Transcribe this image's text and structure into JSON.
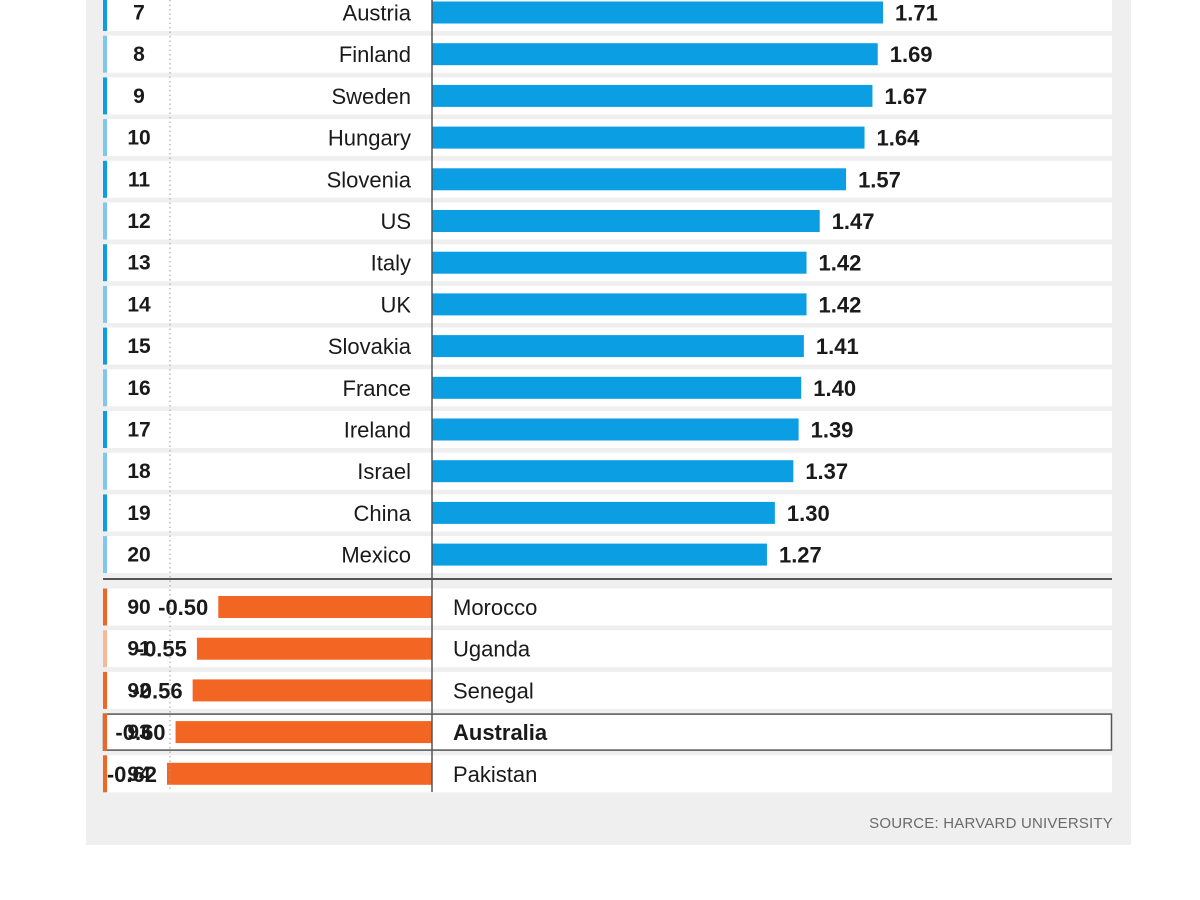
{
  "chart_data": {
    "type": "bar",
    "orientation": "horizontal",
    "title": "",
    "source": "SOURCE: HARVARD UNIVERSITY",
    "colors": {
      "positive": "#0c9ee3",
      "negative": "#f26522",
      "accent_light_blue": "#7fc7ee",
      "accent_light_orange": "#f6b896"
    },
    "top": [
      {
        "rank": "7",
        "country": "Austria",
        "value": 1.71,
        "label": "1.71"
      },
      {
        "rank": "8",
        "country": "Finland",
        "value": 1.69,
        "label": "1.69"
      },
      {
        "rank": "9",
        "country": "Sweden",
        "value": 1.67,
        "label": "1.67"
      },
      {
        "rank": "10",
        "country": "Hungary",
        "value": 1.64,
        "label": "1.64"
      },
      {
        "rank": "11",
        "country": "Slovenia",
        "value": 1.57,
        "label": "1.57"
      },
      {
        "rank": "12",
        "country": "US",
        "value": 1.47,
        "label": "1.47"
      },
      {
        "rank": "13",
        "country": "Italy",
        "value": 1.42,
        "label": "1.42"
      },
      {
        "rank": "14",
        "country": "UK",
        "value": 1.42,
        "label": "1.42"
      },
      {
        "rank": "15",
        "country": "Slovakia",
        "value": 1.41,
        "label": "1.41"
      },
      {
        "rank": "16",
        "country": "France",
        "value": 1.4,
        "label": "1.40"
      },
      {
        "rank": "17",
        "country": "Ireland",
        "value": 1.39,
        "label": "1.39"
      },
      {
        "rank": "18",
        "country": "Israel",
        "value": 1.37,
        "label": "1.37"
      },
      {
        "rank": "19",
        "country": "China",
        "value": 1.3,
        "label": "1.30"
      },
      {
        "rank": "20",
        "country": "Mexico",
        "value": 1.27,
        "label": "1.27"
      }
    ],
    "bottom": [
      {
        "rank": "90",
        "country": "Morocco",
        "value": -0.5,
        "label": "-0.50"
      },
      {
        "rank": "91",
        "country": "Uganda",
        "value": -0.55,
        "label": "-0.55"
      },
      {
        "rank": "92",
        "country": "Senegal",
        "value": -0.56,
        "label": "-0.56"
      },
      {
        "rank": "93",
        "country": "Australia",
        "value": -0.6,
        "label": "-0.60",
        "highlight": true
      },
      {
        "rank": "94",
        "country": "Pakistan",
        "value": -0.62,
        "label": "-0.62"
      }
    ]
  }
}
